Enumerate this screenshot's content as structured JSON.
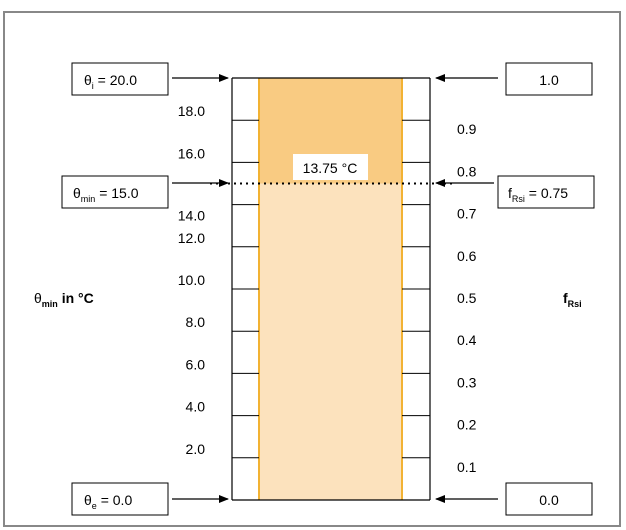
{
  "colors": {
    "upper_fill": "#F9CB82",
    "lower_fill": "#FCE2BD",
    "bar_border": "#F2B233",
    "frame": "#888888"
  },
  "left_scale": {
    "ticks": [
      {
        "label": "18.0",
        "value": 18
      },
      {
        "label": "16.0",
        "value": 16
      },
      {
        "label": "14.0",
        "value": 14
      },
      {
        "label": "12.0",
        "value": 12
      },
      {
        "label": "10.0",
        "value": 10
      },
      {
        "label": "8.0",
        "value": 8
      },
      {
        "label": "6.0",
        "value": 6
      },
      {
        "label": "4.0",
        "value": 4
      },
      {
        "label": "2.0",
        "value": 2
      }
    ],
    "axis_label": {
      "symbol": "θ",
      "subscript": "min",
      "suffix": " in °C"
    }
  },
  "right_scale": {
    "ticks": [
      {
        "label": "0.9",
        "value": 0.9
      },
      {
        "label": "0.8",
        "value": 0.8
      },
      {
        "label": "0.7",
        "value": 0.7
      },
      {
        "label": "0.6",
        "value": 0.6
      },
      {
        "label": "0.5",
        "value": 0.5
      },
      {
        "label": "0.4",
        "value": 0.4
      },
      {
        "label": "0.3",
        "value": 0.3
      },
      {
        "label": "0.2",
        "value": 0.2
      },
      {
        "label": "0.1",
        "value": 0.1
      }
    ],
    "axis_label": {
      "symbol": "f",
      "subscript": "Rsi"
    }
  },
  "boxes": {
    "theta_i": {
      "symbol": "θ",
      "subscript": "i",
      "value": " = 20.0",
      "temp": 20
    },
    "theta_min": {
      "symbol": "θ",
      "subscript": "min",
      "value": " = 15.0",
      "temp": 15
    },
    "theta_e": {
      "symbol": "θ",
      "subscript": "e",
      "value": " = 0.0",
      "temp": 0
    },
    "f_top": {
      "value": "1.0",
      "f": 1.0
    },
    "f_rsi": {
      "symbol": "f",
      "subscript": "Rsi",
      "value": " = 0.75",
      "f": 0.75
    },
    "f_bottom": {
      "value": "0.0",
      "f": 0.0
    }
  },
  "dew_label": "13.75 °C",
  "dew_temp": 13.75
}
